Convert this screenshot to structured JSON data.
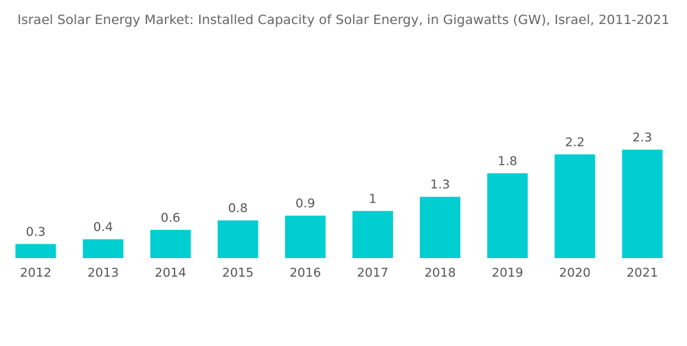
{
  "chart_data": {
    "type": "bar",
    "title": "Israel Solar Energy Market: Installed Capacity of Solar Energy, in Gigawatts (GW), Israel, 2011-2021",
    "categories": [
      "2012",
      "2013",
      "2014",
      "2015",
      "2016",
      "2017",
      "2018",
      "2019",
      "2020",
      "2021"
    ],
    "values": [
      0.3,
      0.4,
      0.6,
      0.8,
      0.9,
      1,
      1.3,
      1.8,
      2.2,
      2.3
    ],
    "xlabel": "",
    "ylabel": "",
    "ylim": [
      0,
      2.3
    ],
    "grid": false,
    "data_labels": true,
    "colors": {
      "bar": "#00CED1",
      "text": "#555555",
      "title": "#666666"
    }
  }
}
